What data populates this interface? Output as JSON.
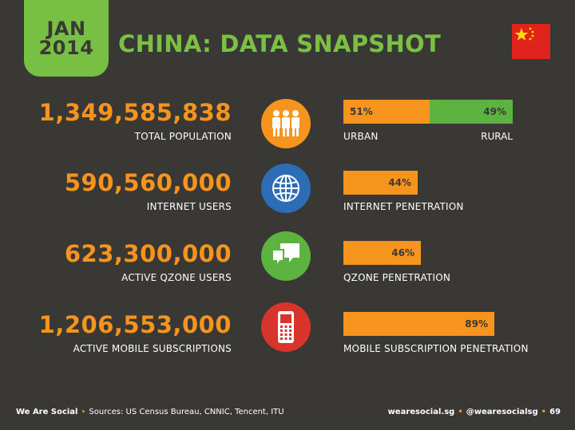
{
  "badge": {
    "month": "JAN",
    "year": "2014"
  },
  "title": "CHINA: DATA SNAPSHOT",
  "rows": [
    {
      "value": "1,349,585,838",
      "label": "TOTAL POPULATION",
      "icon": "people-icon",
      "icon_color": "#f7941d",
      "bar": {
        "segments": [
          {
            "text": "51%",
            "pct": 51,
            "color": "#f7941d"
          },
          {
            "text": "49%",
            "pct": 49,
            "color": "#5cb33f"
          }
        ],
        "left_label": "URBAN",
        "right_label": "RURAL"
      }
    },
    {
      "value": "590,560,000",
      "label": "INTERNET USERS",
      "icon": "globe-icon",
      "icon_color": "#2d6db5",
      "bar": {
        "text": "44%",
        "pct": 44,
        "label": "INTERNET PENETRATION"
      }
    },
    {
      "value": "623,300,000",
      "label": "ACTIVE QZONE USERS",
      "icon": "chat-bubbles-icon",
      "icon_color": "#5cb33f",
      "bar": {
        "text": "46%",
        "pct": 46,
        "label": "QZONE PENETRATION"
      }
    },
    {
      "value": "1,206,553,000",
      "label": "ACTIVE MOBILE SUBSCRIPTIONS",
      "icon": "mobile-phone-icon",
      "icon_color": "#d8342b",
      "bar": {
        "text": "89%",
        "pct": 89,
        "label": "MOBILE SUBSCRIPTION PENETRATION"
      }
    }
  ],
  "footer": {
    "brand": "We Are Social",
    "sources": "Sources: US Census Bureau, CNNIC, Tencent, ITU",
    "site": "wearesocial.sg",
    "handle": "@wearesocialsg",
    "page": "69"
  },
  "colors": {
    "background": "#3a3835",
    "accent_orange": "#f7941d",
    "accent_green": "#7ac043",
    "flag_red": "#e0231c"
  }
}
